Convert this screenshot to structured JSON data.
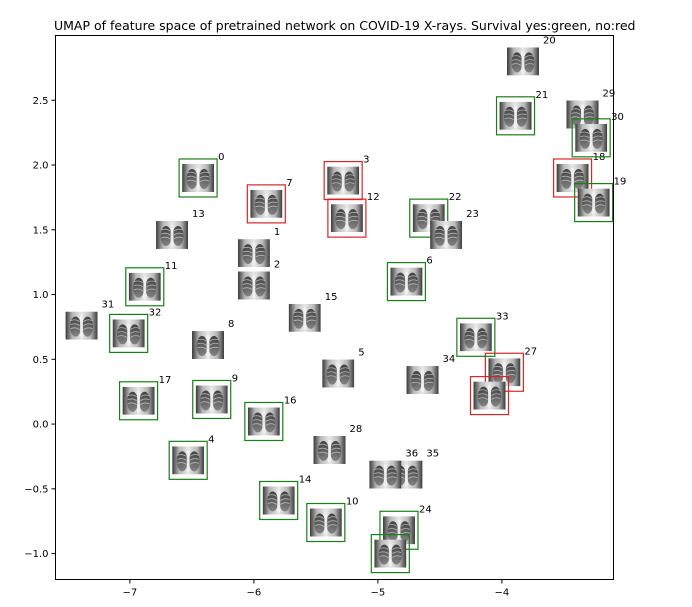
{
  "chart_data": {
    "type": "scatter",
    "title": "UMAP of feature space of pretrained network on COVID-19 X-rays. Survival yes:green, no:red",
    "xlabel": "",
    "ylabel": "",
    "xlim": [
      -7.6,
      -3.1
    ],
    "ylim": [
      -1.2,
      3.0
    ],
    "xticks": [
      -7,
      -6,
      -5,
      -4
    ],
    "yticks": [
      -1.0,
      -0.5,
      0.0,
      0.5,
      1.0,
      1.5,
      2.0,
      2.5
    ],
    "xtick_labels": [
      "−7",
      "−6",
      "−5",
      "−4"
    ],
    "ytick_labels": [
      "−1.0",
      "−0.5",
      "0.0",
      "0.5",
      "1.0",
      "1.5",
      "2.0",
      "2.5"
    ],
    "grid": false,
    "legend": "none",
    "colors": {
      "survived": "#1a7f1a",
      "died": "#d62728",
      "unknown": "none"
    },
    "points": [
      {
        "label": "0",
        "x": -6.45,
        "y": 1.9,
        "survival": "survived"
      },
      {
        "label": "1",
        "x": -6.0,
        "y": 1.32,
        "survival": "unknown"
      },
      {
        "label": "2",
        "x": -6.0,
        "y": 1.07,
        "survival": "unknown"
      },
      {
        "label": "3",
        "x": -5.28,
        "y": 1.88,
        "survival": "died"
      },
      {
        "label": "4",
        "x": -6.53,
        "y": -0.28,
        "survival": "survived"
      },
      {
        "label": "5",
        "x": -5.32,
        "y": 0.39,
        "survival": "unknown"
      },
      {
        "label": "6",
        "x": -4.77,
        "y": 1.1,
        "survival": "survived"
      },
      {
        "label": "7",
        "x": -5.9,
        "y": 1.7,
        "survival": "died"
      },
      {
        "label": "8",
        "x": -6.37,
        "y": 0.61,
        "survival": "unknown"
      },
      {
        "label": "9",
        "x": -6.34,
        "y": 0.19,
        "survival": "survived"
      },
      {
        "label": "10",
        "x": -5.42,
        "y": -0.76,
        "survival": "survived"
      },
      {
        "label": "11",
        "x": -6.88,
        "y": 1.06,
        "survival": "survived"
      },
      {
        "label": "12",
        "x": -5.25,
        "y": 1.59,
        "survival": "died"
      },
      {
        "label": "13",
        "x": -6.66,
        "y": 1.46,
        "survival": "unknown"
      },
      {
        "label": "14",
        "x": -5.8,
        "y": -0.59,
        "survival": "survived"
      },
      {
        "label": "15",
        "x": -5.59,
        "y": 0.82,
        "survival": "unknown"
      },
      {
        "label": "16",
        "x": -5.92,
        "y": 0.02,
        "survival": "survived"
      },
      {
        "label": "17",
        "x": -6.93,
        "y": 0.18,
        "survival": "survived"
      },
      {
        "label": "18",
        "x": -3.43,
        "y": 1.9,
        "survival": "died"
      },
      {
        "label": "19",
        "x": -3.26,
        "y": 1.71,
        "survival": "survived"
      },
      {
        "label": "20",
        "x": -3.83,
        "y": 2.8,
        "survival": "unknown"
      },
      {
        "label": "21",
        "x": -3.89,
        "y": 2.38,
        "survival": "survived"
      },
      {
        "label": "22",
        "x": -4.59,
        "y": 1.59,
        "survival": "survived"
      },
      {
        "label": "23",
        "x": -4.45,
        "y": 1.46,
        "survival": "unknown"
      },
      {
        "label": "24",
        "x": -4.83,
        "y": -0.82,
        "survival": "survived"
      },
      {
        "label": "27",
        "x": -3.98,
        "y": 0.4,
        "survival": "died"
      },
      {
        "label": "28",
        "x": -5.39,
        "y": -0.2,
        "survival": "unknown"
      },
      {
        "label": "29",
        "x": -3.35,
        "y": 2.39,
        "survival": "unknown"
      },
      {
        "label": "30",
        "x": -3.28,
        "y": 2.21,
        "survival": "survived"
      },
      {
        "label": "31",
        "x": -7.39,
        "y": 0.76,
        "survival": "unknown"
      },
      {
        "label": "32",
        "x": -7.01,
        "y": 0.7,
        "survival": "survived"
      },
      {
        "label": "33",
        "x": -4.21,
        "y": 0.67,
        "survival": "survived"
      },
      {
        "label": "34",
        "x": -4.64,
        "y": 0.34,
        "survival": "unknown"
      },
      {
        "label": "35",
        "x": -4.77,
        "y": -0.39,
        "survival": "unknown"
      },
      {
        "label": "36",
        "x": -4.94,
        "y": -0.39,
        "survival": "unknown"
      },
      {
        "label": "",
        "x": -4.9,
        "y": -1.0,
        "survival": "survived"
      },
      {
        "label": "",
        "x": -4.1,
        "y": 0.22,
        "survival": "died"
      }
    ]
  }
}
